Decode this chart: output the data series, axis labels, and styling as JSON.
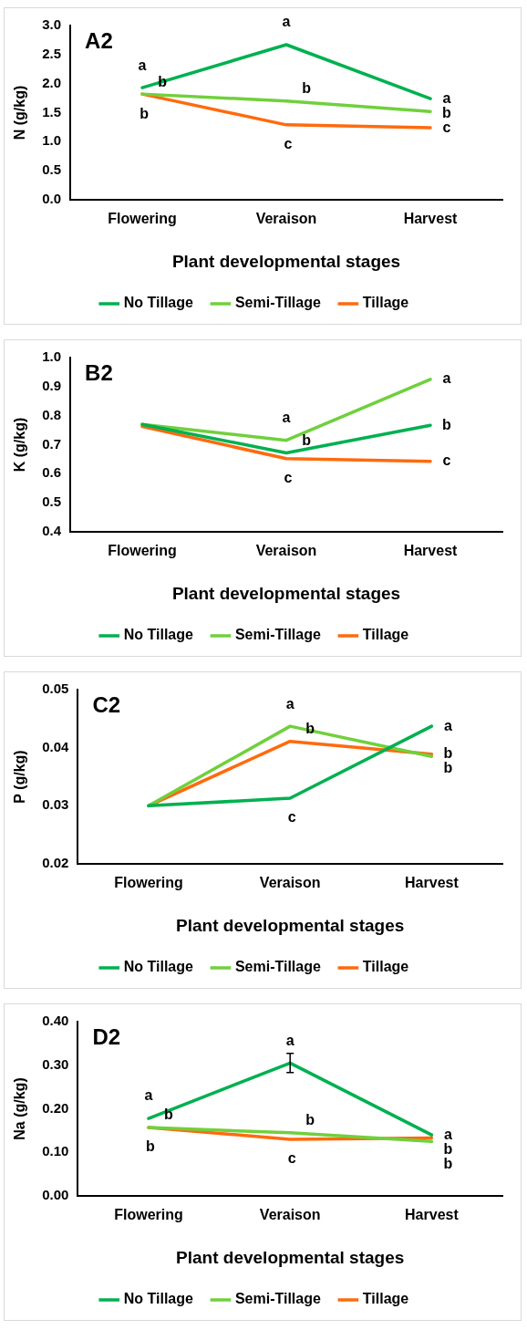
{
  "chart_data": [
    {
      "type": "line",
      "title": "A2",
      "xlabel": "Plant developmental stages",
      "ylabel": "N (g/kg)",
      "categories": [
        "Flowering",
        "Veraison",
        "Harvest"
      ],
      "series": [
        {
          "name": "No Tillage",
          "color": "#00b050",
          "values": [
            1.93,
            2.67,
            1.74
          ]
        },
        {
          "name": "Semi-Tillage",
          "color": "#70d03c",
          "values": [
            1.82,
            1.7,
            1.52
          ]
        },
        {
          "name": "Tillage",
          "color": "#ff6a0d",
          "values": [
            1.82,
            1.29,
            1.24
          ]
        }
      ],
      "ylim": [
        0,
        3
      ],
      "yticks": [
        {
          "value": 0,
          "label": "0.0"
        },
        {
          "value": 0.5,
          "label": "0.5"
        },
        {
          "value": 1,
          "label": "1.0"
        },
        {
          "value": 1.5,
          "label": "1.5"
        },
        {
          "value": 2,
          "label": "2.0"
        },
        {
          "value": 2.5,
          "label": "2.5"
        },
        {
          "value": 3,
          "label": "3.0"
        }
      ],
      "grid": false,
      "legend": "bottom",
      "marker": "none",
      "annotations": [
        {
          "text": "a",
          "x": "Flowering",
          "y": 1.93
        },
        {
          "text": "b",
          "x": "Flowering",
          "y": 1.82
        },
        {
          "text": "b",
          "x": "Flowering",
          "y": 1.82
        },
        {
          "text": "a",
          "x": "Veraison",
          "y": 2.67
        },
        {
          "text": "b",
          "x": "Veraison",
          "y": 1.7
        },
        {
          "text": "c",
          "x": "Veraison",
          "y": 1.29
        },
        {
          "text": "a",
          "x": "Harvest",
          "y": 1.74
        },
        {
          "text": "b",
          "x": "Harvest",
          "y": 1.52
        },
        {
          "text": "c",
          "x": "Harvest",
          "y": 1.24
        }
      ]
    },
    {
      "type": "line",
      "title": "B2",
      "xlabel": "Plant developmental stages",
      "ylabel": "K (g/kg)",
      "categories": [
        "Flowering",
        "Veraison",
        "Harvest"
      ],
      "series": [
        {
          "name": "No Tillage",
          "color": "#00b050",
          "values": [
            0.77,
            0.672,
            0.767
          ]
        },
        {
          "name": "Semi-Tillage",
          "color": "#70d03c",
          "values": [
            0.77,
            0.715,
            0.925
          ]
        },
        {
          "name": "Tillage",
          "color": "#ff6a0d",
          "values": [
            0.763,
            0.652,
            0.643
          ]
        }
      ],
      "ylim": [
        0.4,
        1
      ],
      "yticks": [
        0.4,
        0.5,
        0.6,
        0.7,
        0.8,
        0.9,
        {
          "value": 1,
          "label": "1.0"
        }
      ],
      "grid": false,
      "legend": "bottom",
      "marker": "none",
      "annotations": [
        {
          "text": "a",
          "x": "Veraison",
          "y": 0.715
        },
        {
          "text": "b",
          "x": "Veraison",
          "y": 0.672
        },
        {
          "text": "c",
          "x": "Veraison",
          "y": 0.652
        },
        {
          "text": "a",
          "x": "Harvest",
          "y": 0.925
        },
        {
          "text": "b",
          "x": "Harvest",
          "y": 0.767
        },
        {
          "text": "c",
          "x": "Harvest",
          "y": 0.643
        }
      ]
    },
    {
      "type": "line",
      "title": "C2",
      "xlabel": "Plant developmental stages",
      "ylabel": "P (g/kg)",
      "categories": [
        "Flowering",
        "Veraison",
        "Harvest"
      ],
      "series": [
        {
          "name": "No Tillage",
          "color": "#00b050",
          "values": [
            0.03,
            0.0313,
            0.0437
          ]
        },
        {
          "name": "Semi-Tillage",
          "color": "#70d03c",
          "values": [
            0.03,
            0.0437,
            0.0385
          ]
        },
        {
          "name": "Tillage",
          "color": "#ff6a0d",
          "values": [
            0.03,
            0.0411,
            0.0389
          ]
        }
      ],
      "ylim": [
        0.02,
        0.05
      ],
      "yticks": [
        0.02,
        0.03,
        0.04,
        0.05
      ],
      "grid": false,
      "legend": "bottom",
      "marker": "none",
      "annotations": [
        {
          "text": "a",
          "x": "Veraison",
          "y": 0.0437
        },
        {
          "text": "b",
          "x": "Veraison",
          "y": 0.0411
        },
        {
          "text": "c",
          "x": "Veraison",
          "y": 0.0313
        },
        {
          "text": "a",
          "x": "Harvest",
          "y": 0.0437
        },
        {
          "text": "b",
          "x": "Harvest",
          "y": 0.0389
        },
        {
          "text": "b",
          "x": "Harvest",
          "y": 0.0385
        }
      ]
    },
    {
      "type": "line",
      "title": "D2",
      "xlabel": "Plant developmental stages",
      "ylabel": "Na (g/kg)",
      "categories": [
        "Flowering",
        "Veraison",
        "Harvest"
      ],
      "series": [
        {
          "name": "No Tillage",
          "color": "#00b050",
          "values": [
            0.178,
            0.305,
            0.14
          ],
          "errors": [
            null,
            0.022,
            null
          ]
        },
        {
          "name": "Semi-Tillage",
          "color": "#70d03c",
          "values": [
            0.157,
            0.145,
            0.125
          ]
        },
        {
          "name": "Tillage",
          "color": "#ff6a0d",
          "values": [
            0.157,
            0.13,
            0.133
          ]
        }
      ],
      "ylim": [
        0,
        0.4
      ],
      "yticks": [
        {
          "value": 0,
          "label": "0.00"
        },
        {
          "value": 0.1,
          "label": "0.10"
        },
        {
          "value": 0.2,
          "label": "0.20"
        },
        {
          "value": 0.3,
          "label": "0.30"
        },
        {
          "value": 0.4,
          "label": "0.40"
        }
      ],
      "grid": false,
      "legend": "bottom",
      "marker": "none",
      "annotations": [
        {
          "text": "a",
          "x": "Flowering",
          "y": 0.178
        },
        {
          "text": "b",
          "x": "Flowering",
          "y": 0.157
        },
        {
          "text": "b",
          "x": "Flowering",
          "y": 0.157
        },
        {
          "text": "a",
          "x": "Veraison",
          "y": 0.305
        },
        {
          "text": "b",
          "x": "Veraison",
          "y": 0.145
        },
        {
          "text": "c",
          "x": "Veraison",
          "y": 0.13
        },
        {
          "text": "a",
          "x": "Harvest",
          "y": 0.14
        },
        {
          "text": "b",
          "x": "Harvest",
          "y": 0.133
        },
        {
          "text": "b",
          "x": "Harvest",
          "y": 0.125
        }
      ]
    }
  ]
}
